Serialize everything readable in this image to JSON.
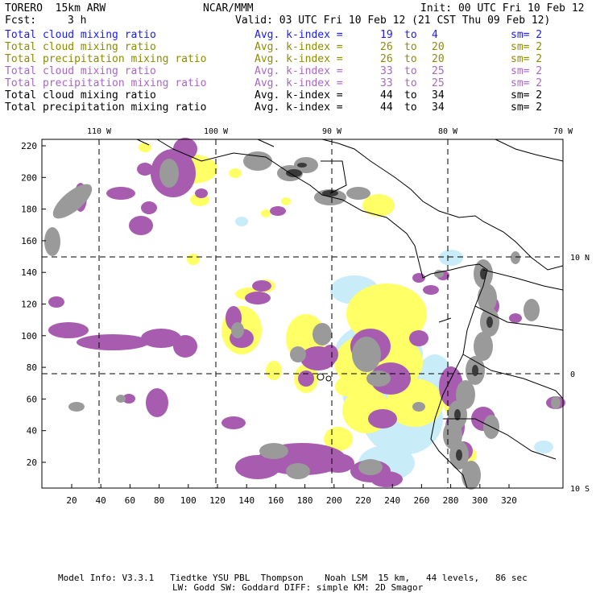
{
  "header": {
    "model": "TORERO  15km ARW",
    "org": "NCAR/MMM",
    "init": "Init: 00 UTC Fri 10 Feb 12",
    "fcst_label": "Fcst:",
    "fcst_value": "3 h",
    "valid": "Valid: 03 UTC Fri 10 Feb 12 (21 CST Thu 09 Feb 12)"
  },
  "fields": [
    {
      "name": "Total cloud mixing ratio",
      "k": "Avg. k-index =",
      "a": "19",
      "to": "to",
      "b": "4",
      "sm": "sm= 2",
      "color": "#1a1aff"
    },
    {
      "name": "Total cloud mixing ratio",
      "k": "Avg. k-index =",
      "a": "26",
      "to": "to",
      "b": "20",
      "sm": "sm= 2",
      "color": "#8c8c00"
    },
    {
      "name": "Total precipitation mixing ratio",
      "k": "Avg. k-index =",
      "a": "26",
      "to": "to",
      "b": "20",
      "sm": "sm= 2",
      "color": "#8c8c00"
    },
    {
      "name": "Total cloud mixing ratio",
      "k": "Avg. k-index =",
      "a": "33",
      "to": "to",
      "b": "25",
      "sm": "sm= 2",
      "color": "#a866c8"
    },
    {
      "name": "Total precipitation mixing ratio",
      "k": "Avg. k-index =",
      "a": "33",
      "to": "to",
      "b": "25",
      "sm": "sm= 2",
      "color": "#a866c8"
    },
    {
      "name": "Total cloud mixing ratio",
      "k": "Avg. k-index =",
      "a": "44",
      "to": "to",
      "b": "34",
      "sm": "sm= 2",
      "color": "#000000"
    },
    {
      "name": "Total precipitation mixing ratio",
      "k": "Avg. k-index =",
      "a": "44",
      "to": "to",
      "b": "34",
      "sm": "sm= 2",
      "color": "#000000"
    }
  ],
  "map": {
    "lon_labels": [
      "110 W",
      "100 W",
      "90 W",
      "80 W",
      "70 W"
    ],
    "lat_labels": [
      "10 N",
      "0",
      "10 S"
    ],
    "x_ticks": [
      "20",
      "40",
      "60",
      "80",
      "100",
      "120",
      "140",
      "160",
      "180",
      "200",
      "220",
      "240",
      "260",
      "280",
      "300",
      "320"
    ],
    "y_ticks": [
      "220",
      "200",
      "180",
      "160",
      "140",
      "120",
      "100",
      "80",
      "60",
      "40",
      "20"
    ],
    "colors": {
      "cloud_low": "#c8ecf8",
      "cloud_mid": "#ffff66",
      "cloud_high": "#a85cb0",
      "cloud_top": "#9a9a9a",
      "cloud_core": "#3a3a3a"
    }
  },
  "footer": {
    "line1": "Model Info: V3.3.1   Tiedtke YSU PBL  Thompson    Noah LSM  15 km,   44 levels,   86 sec",
    "line2": "LW: Godd SW: Goddard DIFF: simple KM: 2D Smagor"
  }
}
